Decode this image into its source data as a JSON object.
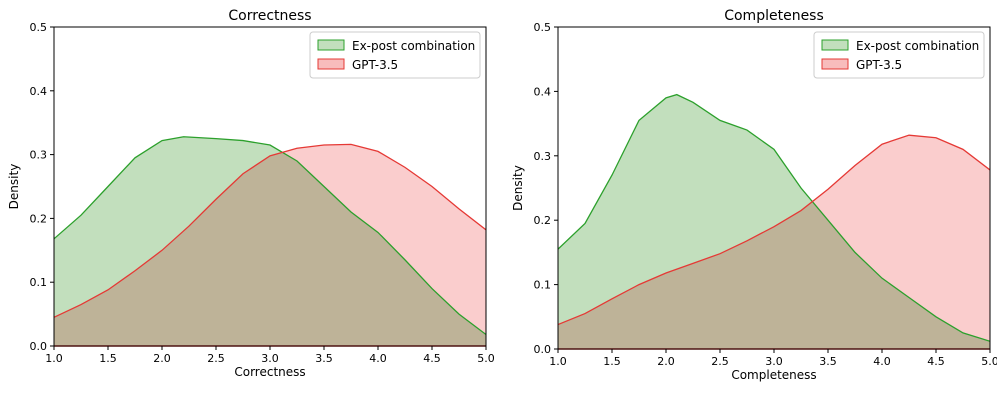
{
  "chart_data": [
    {
      "type": "area",
      "title": "Correctness",
      "xlabel": "Correctness",
      "ylabel": "Density",
      "xlim": [
        1.0,
        5.0
      ],
      "ylim": [
        0.0,
        0.5
      ],
      "xticks": [
        "1.0",
        "1.5",
        "2.0",
        "2.5",
        "3.0",
        "3.5",
        "4.0",
        "4.5",
        "5.0"
      ],
      "yticks": [
        "0.0",
        "0.1",
        "0.2",
        "0.3",
        "0.4",
        "0.5"
      ],
      "grid": false,
      "legend_position": "top-right",
      "series": [
        {
          "name": "Ex-post combination",
          "color": "#2ca02c",
          "fill": "#c2dfbd",
          "x": [
            1.0,
            1.25,
            1.5,
            1.75,
            2.0,
            2.2,
            2.5,
            2.75,
            3.0,
            3.25,
            3.5,
            3.75,
            4.0,
            4.25,
            4.5,
            4.75,
            5.0
          ],
          "y": [
            0.168,
            0.205,
            0.25,
            0.295,
            0.322,
            0.328,
            0.325,
            0.322,
            0.315,
            0.29,
            0.25,
            0.21,
            0.178,
            0.135,
            0.09,
            0.05,
            0.018
          ]
        },
        {
          "name": "GPT-3.5",
          "color": "#e53935",
          "fill": "#f8bcbc",
          "x": [
            1.0,
            1.25,
            1.5,
            1.75,
            2.0,
            2.25,
            2.5,
            2.75,
            3.0,
            3.25,
            3.5,
            3.75,
            4.0,
            4.25,
            4.5,
            4.75,
            5.0
          ],
          "y": [
            0.045,
            0.065,
            0.088,
            0.118,
            0.15,
            0.188,
            0.23,
            0.27,
            0.298,
            0.31,
            0.315,
            0.316,
            0.305,
            0.28,
            0.25,
            0.215,
            0.182
          ]
        }
      ]
    },
    {
      "type": "area",
      "title": "Completeness",
      "xlabel": "Completeness",
      "ylabel": "Density",
      "xlim": [
        1.0,
        5.0
      ],
      "ylim": [
        0.0,
        0.5
      ],
      "xticks": [
        "1.0",
        "1.5",
        "2.0",
        "2.5",
        "3.0",
        "3.5",
        "4.0",
        "4.5",
        "5.0"
      ],
      "yticks": [
        "0.0",
        "0.1",
        "0.2",
        "0.3",
        "0.4",
        "0.5"
      ],
      "grid": false,
      "legend_position": "top-right",
      "series": [
        {
          "name": "Ex-post combination",
          "color": "#2ca02c",
          "fill": "#c2dfbd",
          "x": [
            1.0,
            1.25,
            1.5,
            1.75,
            2.0,
            2.1,
            2.25,
            2.5,
            2.75,
            3.0,
            3.25,
            3.5,
            3.75,
            4.0,
            4.25,
            4.5,
            4.75,
            5.0
          ],
          "y": [
            0.155,
            0.195,
            0.27,
            0.355,
            0.39,
            0.395,
            0.383,
            0.355,
            0.34,
            0.31,
            0.25,
            0.2,
            0.15,
            0.11,
            0.08,
            0.05,
            0.025,
            0.012
          ]
        },
        {
          "name": "GPT-3.5",
          "color": "#e53935",
          "fill": "#f8bcbc",
          "x": [
            1.0,
            1.25,
            1.5,
            1.75,
            2.0,
            2.25,
            2.5,
            2.75,
            3.0,
            3.25,
            3.5,
            3.75,
            4.0,
            4.25,
            4.5,
            4.75,
            5.0
          ],
          "y": [
            0.038,
            0.055,
            0.078,
            0.1,
            0.118,
            0.133,
            0.148,
            0.168,
            0.19,
            0.215,
            0.248,
            0.285,
            0.318,
            0.332,
            0.328,
            0.31,
            0.278
          ]
        }
      ]
    }
  ]
}
